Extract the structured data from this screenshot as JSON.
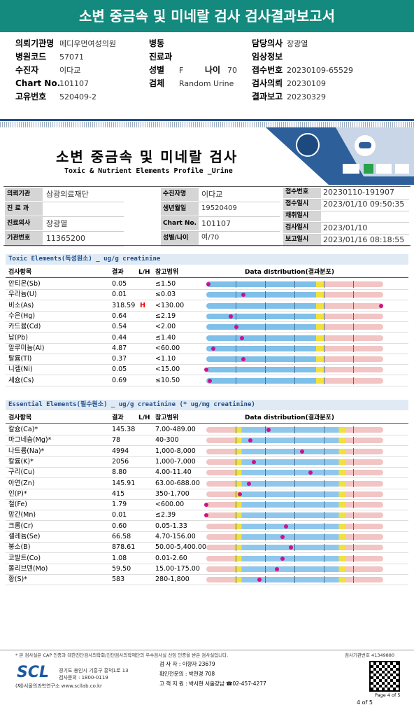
{
  "header": {
    "title": "소변 중금속 및 미네랄 검사 검사결과보고서",
    "info": [
      {
        "label": "의뢰기관명",
        "value": "메디우먼여성의원"
      },
      {
        "label": "병동"
      },
      {
        "label": "담당의사",
        "value": "장광열"
      },
      {
        "label": "병원코드",
        "value": "57071"
      },
      {
        "label": "진료과"
      },
      {
        "label": "임상정보"
      },
      {
        "label": "수진자",
        "value": "이다교"
      },
      {
        "label": "성별",
        "value": "F"
      },
      {
        "label": "나이",
        "value": "70"
      },
      {
        "label": "접수번호",
        "value": "20230109-65529"
      },
      {
        "label": "Chart No.",
        "value": "101107"
      },
      {
        "label": "검체",
        "value": "Random Urine"
      },
      {
        "label": "검사의뢰",
        "value": "20230109"
      },
      {
        "label": "고유번호",
        "value": "520409-2"
      },
      {
        "label": "결과보고",
        "value": "20230329"
      }
    ]
  },
  "report": {
    "title": "소변 중금속 및 미네랄 검사",
    "subtitle": "Toxic & Nutrient Elements Profile _Urine"
  },
  "patient_table": {
    "columns": [
      [
        {
          "label": "의뢰기관",
          "value": "삼광의료재단"
        },
        {
          "label": "진 료 과"
        },
        {
          "label": "진료의사",
          "value": "장광열"
        },
        {
          "label": "기관번호",
          "value": "11365200"
        }
      ],
      [
        {
          "label": "수진자명",
          "value": "이다교"
        },
        {
          "label": "생년월일",
          "value": "19520409"
        },
        {
          "label": "Chart No.",
          "value": "101107"
        },
        {
          "label": "성별/나이",
          "value": "여/70"
        }
      ],
      [
        {
          "label": "접수번호",
          "value": "20230110-191907"
        },
        {
          "label": "접수일시",
          "value": "2023/01/10 09:50:35"
        },
        {
          "label": "채취일시"
        },
        {
          "label": "검사일시",
          "value": "2023/01/10"
        },
        {
          "label": "보고일시",
          "value": "2023/01/16 08:18:55"
        }
      ]
    ]
  },
  "toxic": {
    "title": "Toxic Elements(독성원소) _ ug/g creatinine",
    "headers": [
      "검사항목",
      "결과",
      "L/H",
      "참고범위",
      "Data distribution(결과분포)"
    ],
    "rows": [
      {
        "name": "안티몬(Sb)",
        "result": "0.05",
        "range": "≤1.50",
        "marker": 1
      },
      {
        "name": "우라늄(U)",
        "result": "0.01",
        "range": "≤0.03",
        "marker": 21
      },
      {
        "name": "비소(As)",
        "result": "318.59",
        "flag": "H",
        "range": "<130.00",
        "marker": 99
      },
      {
        "name": "수은(Hg)",
        "result": "0.64",
        "range": "≤2.19",
        "marker": 14
      },
      {
        "name": "카드뮴(Cd)",
        "result": "0.54",
        "range": "<2.00",
        "marker": 17
      },
      {
        "name": "납(Pb)",
        "result": "0.44",
        "range": "≤1.40",
        "marker": 20
      },
      {
        "name": "알루미늄(Al)",
        "result": "4.87",
        "range": "<60.00",
        "marker": 4
      },
      {
        "name": "탈륨(Tl)",
        "result": "0.37",
        "range": "<1.10",
        "marker": 21
      },
      {
        "name": "니켈(Ni)",
        "result": "0.05",
        "range": "<15.00",
        "marker": 0
      },
      {
        "name": "세슘(Cs)",
        "result": "0.69",
        "range": "≤10.50",
        "marker": 2
      }
    ]
  },
  "essential": {
    "title": "Essential Elements(필수원소) _ ug/g creatinine (* ug/mg creatinine)",
    "headers": [
      "검사항목",
      "결과",
      "L/H",
      "참고범위",
      "Data distribution(결과분포)"
    ],
    "rows": [
      {
        "name": "칼슘(Ca)*",
        "result": "145.38",
        "range": "7.00-489.00",
        "marker": 35
      },
      {
        "name": "마그네슘(Mg)*",
        "result": "78",
        "range": "40-300",
        "marker": 25
      },
      {
        "name": "나트륨(Na)*",
        "result": "4994",
        "range": "1,000-8,000",
        "marker": 54
      },
      {
        "name": "칼륨(K)*",
        "result": "2056",
        "range": "1,000-7,000",
        "marker": 27
      },
      {
        "name": "구리(Cu)",
        "result": "8.80",
        "range": "4.00-11.40",
        "marker": 59
      },
      {
        "name": "아연(Zn)",
        "result": "145.91",
        "range": "63.00-688.00",
        "marker": 24
      },
      {
        "name": "인(P)*",
        "result": "415",
        "range": "350-1,700",
        "marker": 19
      },
      {
        "name": "철(Fe)",
        "result": "1.79",
        "range": "<600.00",
        "marker": 0
      },
      {
        "name": "망간(Mn)",
        "result": "0.01",
        "range": "≤2.39",
        "marker": 0
      },
      {
        "name": "크롬(Cr)",
        "result": "0.60",
        "range": "0.05-1.33",
        "marker": 45
      },
      {
        "name": "셀레늄(Se)",
        "result": "66.58",
        "range": "4.70-156.00",
        "marker": 43
      },
      {
        "name": "붕소(B)",
        "result": "878.61",
        "range": "50.00-5,400.00",
        "marker": 48
      },
      {
        "name": "코발트(Co)",
        "result": "1.08",
        "range": "0.01-2.60",
        "marker": 43
      },
      {
        "name": "몰리브덴(Mo)",
        "result": "59.50",
        "range": "15.00-175.00",
        "marker": 40
      },
      {
        "name": "황(S)*",
        "result": "583",
        "range": "280-1,800",
        "marker": 30
      }
    ]
  },
  "footer": {
    "notice": "* 본 검사실은 CAP 인증과 대한진단검사의학회/진단검사의학재단의 우수검사실 신임 인증을 받은 검사실입니다.",
    "agency_no": "검사기관번호 41349880",
    "logo": "SCL",
    "address": "경기도 용인시 기흥구 흥덕1로 13",
    "inquiry": "검사문의 : 1800-0119",
    "institute": "(재)서울의과학연구소  www.scllab.co.kr",
    "examiner": "검  사  자 : 이향자 23679",
    "specialist": "확인전문의 : 박현경 708",
    "support": "고 객 지 원 : 박사현 서울강남 ☎02-457-4277",
    "page": "Page 4 of 5",
    "page_short": "4 of 5"
  }
}
